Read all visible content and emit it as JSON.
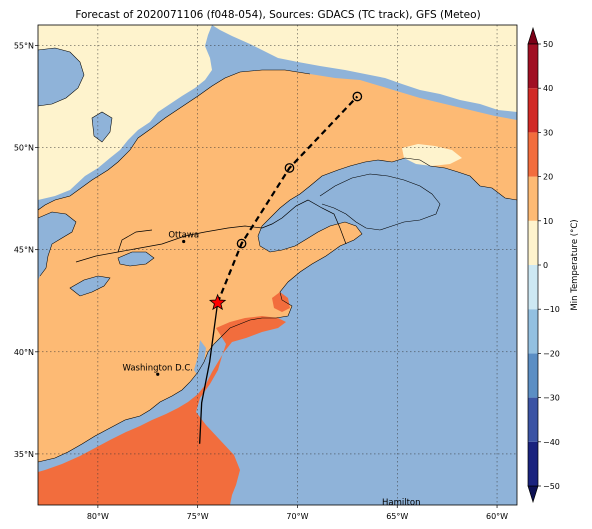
{
  "title": "Forecast of 2020071106 (f048-054), Sources: GDACS (TC track), GFS (Meteo)",
  "map": {
    "lon_range": [
      -83,
      -59
    ],
    "lat_range": [
      32.5,
      56
    ],
    "lon_ticks": [
      {
        "value": -80,
        "label": "80°W"
      },
      {
        "value": -75,
        "label": "75°W"
      },
      {
        "value": -70,
        "label": "70°W"
      },
      {
        "value": -65,
        "label": "65°W"
      },
      {
        "value": -60,
        "label": "60°W"
      }
    ],
    "lat_ticks": [
      {
        "value": 35,
        "label": "35°N"
      },
      {
        "value": 40,
        "label": "40°N"
      },
      {
        "value": 45,
        "label": "45°N"
      },
      {
        "value": 50,
        "label": "50°N"
      },
      {
        "value": 55,
        "label": "55°N"
      }
    ],
    "gridlines": true,
    "colors": {
      "ocean": "#8fb3d9",
      "band_10_20": "#fdba74",
      "band_0_10": "#fef3cd",
      "band_20_30": "#f26d3d"
    },
    "cities": [
      {
        "name": "Ottawa",
        "lon": -75.7,
        "lat": 45.4
      },
      {
        "name": "Washington D.C.",
        "lon": -77.0,
        "lat": 38.9
      },
      {
        "name": "Hamilton",
        "lon": -64.8,
        "lat": 32.3
      }
    ],
    "track_observed": [
      {
        "lon": -74.9,
        "lat": 35.5
      },
      {
        "lon": -74.8,
        "lat": 37.5
      },
      {
        "lon": -74.4,
        "lat": 39.5
      },
      {
        "lon": -74.0,
        "lat": 42.4
      }
    ],
    "track_forecast": [
      {
        "lon": -74.0,
        "lat": 42.4
      },
      {
        "lon": -72.8,
        "lat": 45.3
      },
      {
        "lon": -70.4,
        "lat": 49.0
      },
      {
        "lon": -67.0,
        "lat": 52.5
      }
    ],
    "current_position": {
      "lon": -74.0,
      "lat": 42.4
    },
    "forecast_points": [
      {
        "lon": -72.8,
        "lat": 45.3
      },
      {
        "lon": -70.4,
        "lat": 49.0
      },
      {
        "lon": -67.0,
        "lat": 52.5
      }
    ]
  },
  "colorbar": {
    "label": "Min Temperature (°C)",
    "min": -50,
    "max": 50,
    "ticks": [
      50,
      40,
      30,
      20,
      10,
      0,
      -10,
      -20,
      -30,
      -40,
      -50
    ],
    "tick_labels": [
      "50",
      "40",
      "30",
      "20",
      "10",
      "0",
      "−10",
      "−20",
      "−30",
      "−40",
      "−50"
    ],
    "bands": [
      {
        "from": -50,
        "to": -40,
        "color": "#1a237e"
      },
      {
        "from": -40,
        "to": -30,
        "color": "#3b53a4"
      },
      {
        "from": -30,
        "to": -20,
        "color": "#5b8ec4"
      },
      {
        "from": -20,
        "to": -10,
        "color": "#93c0e0"
      },
      {
        "from": -10,
        "to": 0,
        "color": "#cde8f3"
      },
      {
        "from": 0,
        "to": 10,
        "color": "#fef3cd"
      },
      {
        "from": 10,
        "to": 20,
        "color": "#fdba74"
      },
      {
        "from": 20,
        "to": 30,
        "color": "#f26d3d"
      },
      {
        "from": 30,
        "to": 40,
        "color": "#d12a26"
      },
      {
        "from": 40,
        "to": 50,
        "color": "#a00f23"
      }
    ],
    "extend_low_color": "#0d1154",
    "extend_high_color": "#7a0016"
  }
}
